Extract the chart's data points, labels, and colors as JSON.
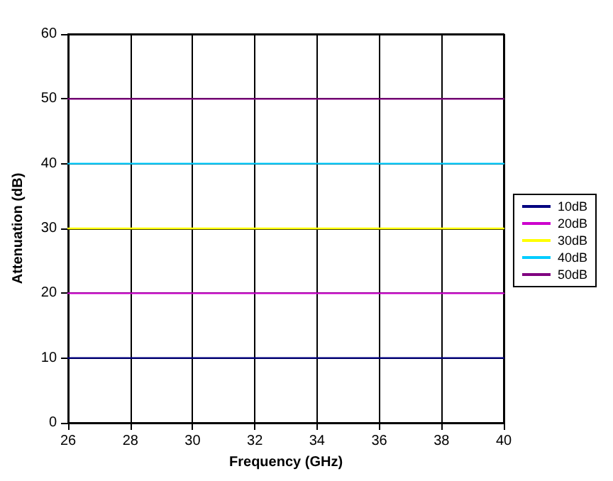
{
  "chart_data": {
    "type": "line",
    "xlabel": "Frequency (GHz)",
    "ylabel": "Attenuation (dB)",
    "x": [
      26,
      40
    ],
    "series": [
      {
        "name": "10dB",
        "color": "#000080",
        "values": [
          10,
          10
        ]
      },
      {
        "name": "20dB",
        "color": "#cc00cc",
        "values": [
          20,
          20
        ]
      },
      {
        "name": "30dB",
        "color": "#ffff00",
        "values": [
          30,
          30
        ]
      },
      {
        "name": "40dB",
        "color": "#00ccff",
        "values": [
          40,
          40
        ]
      },
      {
        "name": "50dB",
        "color": "#800080",
        "values": [
          50,
          50
        ]
      }
    ],
    "xlim": [
      26,
      40
    ],
    "xticks": [
      26,
      28,
      30,
      32,
      34,
      36,
      38,
      40
    ],
    "ylim": [
      0,
      60
    ],
    "yticks": [
      0,
      10,
      20,
      30,
      40,
      50,
      60
    ],
    "grid": true,
    "legend": "right",
    "marker": "none",
    "line_style": "solid"
  }
}
